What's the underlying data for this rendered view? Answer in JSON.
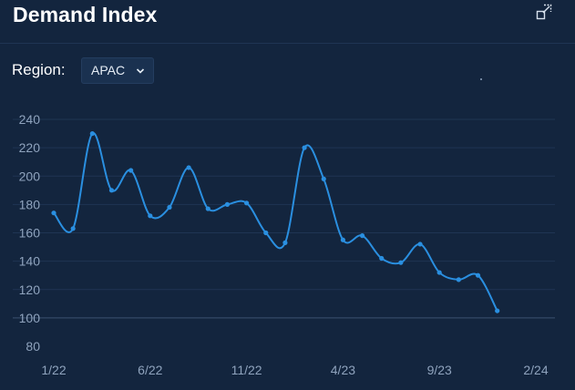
{
  "header": {
    "title": "Demand Index",
    "expand_icon": "expand-icon"
  },
  "filter": {
    "label": "Region:",
    "selected": "APAC",
    "chevron_icon": "chevron-down-icon"
  },
  "colors": {
    "background": "#13253e",
    "line": "#2a8fe0",
    "grid": "#1f3553",
    "tick_text": "#8fa3bd"
  },
  "chart_data": {
    "type": "line",
    "title": "",
    "xlabel": "",
    "ylabel": "",
    "ylim": [
      80,
      240
    ],
    "yticks": [
      80,
      100,
      120,
      140,
      160,
      180,
      200,
      220,
      240
    ],
    "xticks": [
      "1/22",
      "6/22",
      "11/22",
      "4/23",
      "9/23",
      "2/24"
    ],
    "grid": true,
    "series": [
      {
        "name": "",
        "points": [
          {
            "x": "2022-01",
            "y": 174
          },
          {
            "x": "2022-02",
            "y": 163
          },
          {
            "x": "2022-03",
            "y": 230
          },
          {
            "x": "2022-04",
            "y": 190
          },
          {
            "x": "2022-05",
            "y": 204
          },
          {
            "x": "2022-06",
            "y": 172
          },
          {
            "x": "2022-07",
            "y": 178
          },
          {
            "x": "2022-08",
            "y": 206
          },
          {
            "x": "2022-09",
            "y": 177
          },
          {
            "x": "2022-10",
            "y": 180
          },
          {
            "x": "2022-11",
            "y": 181
          },
          {
            "x": "2022-12",
            "y": 160
          },
          {
            "x": "2023-01",
            "y": 153
          },
          {
            "x": "2023-02",
            "y": 220
          },
          {
            "x": "2023-03",
            "y": 198
          },
          {
            "x": "2023-04",
            "y": 155
          },
          {
            "x": "2023-05",
            "y": 158
          },
          {
            "x": "2023-06",
            "y": 142
          },
          {
            "x": "2023-07",
            "y": 139
          },
          {
            "x": "2023-08",
            "y": 152
          },
          {
            "x": "2023-09",
            "y": 132
          },
          {
            "x": "2023-10",
            "y": 127
          },
          {
            "x": "2023-11",
            "y": 130
          },
          {
            "x": "2023-12",
            "y": 105
          }
        ]
      }
    ]
  }
}
